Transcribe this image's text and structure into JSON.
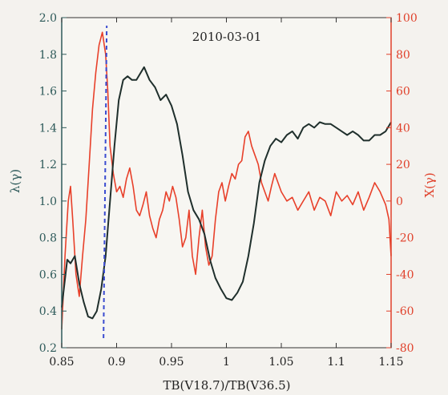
{
  "chart_data": {
    "type": "line",
    "annotation": "2010-03-01",
    "xlabel": "TB(V18.7)/TB(V36.5)",
    "ylabel_left": "λ(γ)",
    "ylabel_right": "X(γ)",
    "xlim": [
      0.85,
      1.15
    ],
    "ylim_left": [
      0.2,
      2.0
    ],
    "ylim_right": [
      -80,
      100
    ],
    "xticks": [
      "0.85",
      "0.9",
      "0.95",
      "1",
      "1.05",
      "1.1",
      "1.15"
    ],
    "yticks_left": [
      "0.2",
      "0.4",
      "0.6",
      "0.8",
      "1.0",
      "1.2",
      "1.4",
      "1.6",
      "1.8",
      "2.0"
    ],
    "yticks_right": [
      "-80",
      "-60",
      "-40",
      "-20",
      "0",
      "20",
      "40",
      "60",
      "80",
      "100"
    ],
    "grid": false,
    "colors": {
      "lambda": "#1f2f2c",
      "x": "#e8402a",
      "marker": "#3a4bd0",
      "left_axis": "#2e5a5a",
      "right_axis": "#e0402a"
    },
    "vertical_marker_x": 0.891,
    "series": [
      {
        "axis": "left",
        "x": [
          0.85,
          0.855,
          0.858,
          0.862,
          0.866,
          0.87,
          0.874,
          0.878,
          0.882,
          0.886,
          0.89,
          0.894,
          0.898,
          0.902,
          0.906,
          0.91,
          0.914,
          0.918,
          0.922,
          0.925,
          0.93,
          0.935,
          0.94,
          0.945,
          0.95,
          0.955,
          0.96,
          0.965,
          0.97,
          0.975,
          0.98,
          0.985,
          0.99,
          0.995,
          1.0,
          1.005,
          1.01,
          1.015,
          1.02,
          1.025,
          1.03,
          1.035,
          1.04,
          1.045,
          1.05,
          1.055,
          1.06,
          1.065,
          1.07,
          1.075,
          1.08,
          1.085,
          1.09,
          1.095,
          1.1,
          1.105,
          1.11,
          1.115,
          1.12,
          1.125,
          1.13,
          1.135,
          1.14,
          1.145,
          1.15
        ],
        "y": [
          0.42,
          0.68,
          0.66,
          0.7,
          0.55,
          0.45,
          0.37,
          0.36,
          0.4,
          0.52,
          0.7,
          1.0,
          1.3,
          1.55,
          1.66,
          1.68,
          1.66,
          1.66,
          1.7,
          1.73,
          1.66,
          1.62,
          1.55,
          1.58,
          1.52,
          1.42,
          1.25,
          1.05,
          0.95,
          0.9,
          0.82,
          0.68,
          0.58,
          0.52,
          0.47,
          0.46,
          0.5,
          0.56,
          0.7,
          0.88,
          1.1,
          1.22,
          1.3,
          1.34,
          1.32,
          1.36,
          1.38,
          1.34,
          1.4,
          1.42,
          1.4,
          1.43,
          1.42,
          1.42,
          1.4,
          1.38,
          1.36,
          1.38,
          1.36,
          1.33,
          1.33,
          1.36,
          1.36,
          1.38,
          1.43
        ]
      },
      {
        "axis": "right",
        "x": [
          0.85,
          0.853,
          0.856,
          0.858,
          0.86,
          0.863,
          0.866,
          0.869,
          0.872,
          0.875,
          0.878,
          0.881,
          0.884,
          0.887,
          0.89,
          0.892,
          0.894,
          0.897,
          0.9,
          0.903,
          0.906,
          0.909,
          0.912,
          0.915,
          0.918,
          0.921,
          0.924,
          0.927,
          0.93,
          0.933,
          0.936,
          0.939,
          0.942,
          0.945,
          0.948,
          0.951,
          0.954,
          0.957,
          0.96,
          0.963,
          0.966,
          0.969,
          0.972,
          0.975,
          0.978,
          0.981,
          0.984,
          0.987,
          0.99,
          0.993,
          0.996,
          0.999,
          1.002,
          1.005,
          1.008,
          1.011,
          1.014,
          1.017,
          1.02,
          1.023,
          1.026,
          1.029,
          1.032,
          1.035,
          1.038,
          1.041,
          1.044,
          1.047,
          1.05,
          1.055,
          1.06,
          1.065,
          1.07,
          1.075,
          1.08,
          1.085,
          1.09,
          1.095,
          1.1,
          1.105,
          1.11,
          1.115,
          1.12,
          1.125,
          1.13,
          1.135,
          1.14,
          1.145,
          1.148,
          1.15
        ],
        "y": [
          -70,
          -30,
          0,
          8,
          -10,
          -40,
          -52,
          -30,
          -10,
          20,
          50,
          70,
          85,
          92,
          80,
          60,
          30,
          15,
          5,
          8,
          2,
          12,
          18,
          8,
          -5,
          -8,
          -2,
          5,
          -8,
          -15,
          -20,
          -10,
          -5,
          5,
          0,
          8,
          2,
          -10,
          -25,
          -20,
          -5,
          -30,
          -40,
          -20,
          -5,
          -25,
          -35,
          -30,
          -10,
          5,
          10,
          0,
          8,
          15,
          12,
          20,
          22,
          35,
          38,
          30,
          25,
          20,
          10,
          5,
          0,
          8,
          15,
          10,
          5,
          0,
          2,
          -5,
          0,
          5,
          -5,
          2,
          0,
          -8,
          5,
          0,
          3,
          -2,
          5,
          -5,
          2,
          10,
          5,
          -2,
          -10,
          -30
        ]
      }
    ]
  }
}
